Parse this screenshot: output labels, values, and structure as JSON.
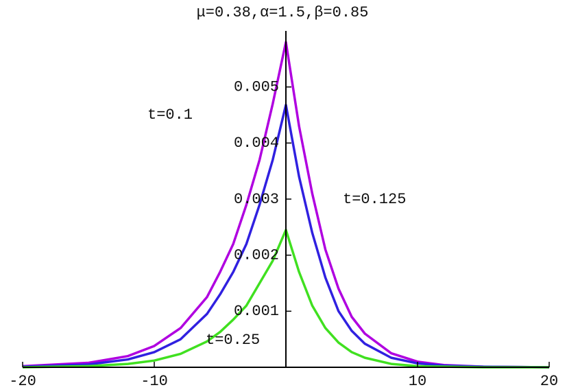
{
  "chart_data": {
    "type": "line",
    "title": "μ=0.38,α=1.5,β=0.85",
    "x": [
      -20,
      -15,
      -12,
      -10,
      -8,
      -6,
      -5,
      -4,
      -3,
      -2,
      -1,
      0,
      1,
      2,
      3,
      4,
      5,
      6,
      8,
      10,
      12,
      15,
      20
    ],
    "series": [
      {
        "color": "#b000e0",
        "values": [
          2e-05,
          8e-05,
          0.0002,
          0.00038,
          0.0007,
          0.00125,
          0.0017,
          0.0022,
          0.0029,
          0.0037,
          0.0047,
          0.0058,
          0.0043,
          0.0031,
          0.0021,
          0.0014,
          0.0009,
          0.0006,
          0.00025,
          0.0001,
          4e-05,
          1e-05,
          0
        ]
      },
      {
        "color": "#3020e0",
        "values": [
          1e-05,
          5e-05,
          0.00014,
          0.00027,
          0.0005,
          0.00095,
          0.0013,
          0.0017,
          0.0022,
          0.0029,
          0.0037,
          0.00468,
          0.0034,
          0.0024,
          0.0016,
          0.001,
          0.00065,
          0.00042,
          0.00017,
          7e-05,
          3e-05,
          1e-05,
          0
        ]
      },
      {
        "color": "#40e020",
        "values": [
          0,
          2e-05,
          6e-05,
          0.00012,
          0.00024,
          0.00046,
          0.00063,
          0.00085,
          0.0011,
          0.0015,
          0.0019,
          0.00245,
          0.0017,
          0.0011,
          0.0007,
          0.00044,
          0.00027,
          0.00017,
          6e-05,
          2e-05,
          1e-05,
          0,
          0
        ]
      }
    ],
    "xlim": [
      -20,
      20
    ],
    "xticks": [
      -20,
      -10,
      10,
      20
    ],
    "ylim": [
      0,
      0.006
    ],
    "yticks": [
      0.001,
      0.002,
      0.003,
      0.004,
      0.005
    ],
    "annotations": [
      "t=0.1",
      "t=0.125",
      "t=0.25"
    ]
  }
}
